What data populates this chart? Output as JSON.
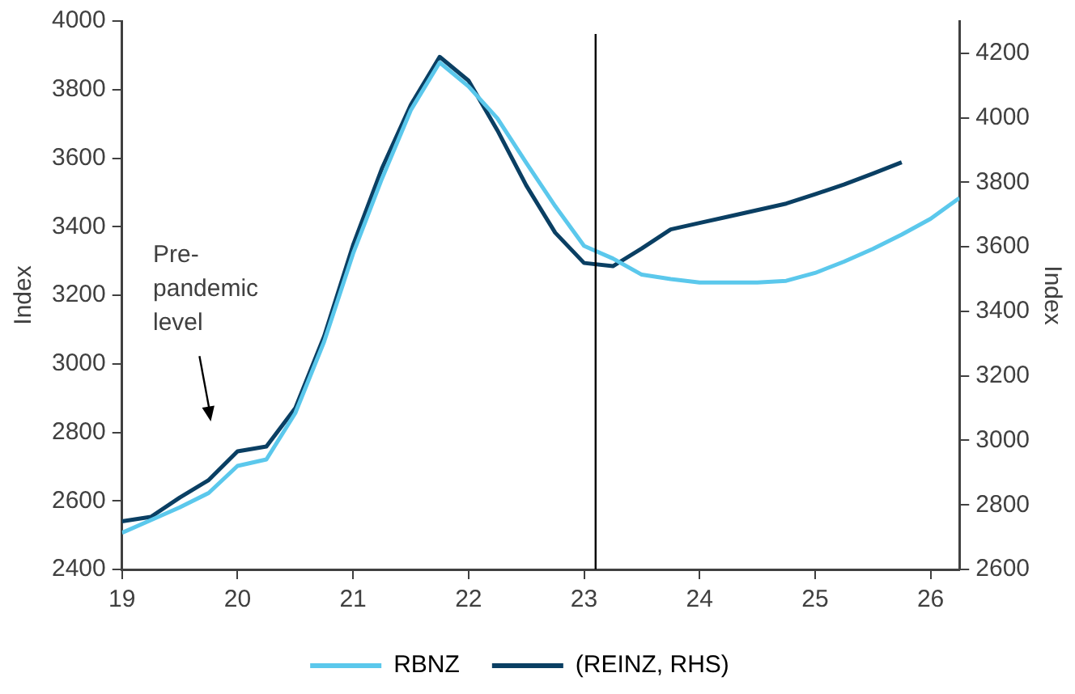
{
  "chart_data": {
    "type": "line",
    "ylabel": "Index",
    "y2label": "Index",
    "xlim": [
      19,
      26.25
    ],
    "xticks": [
      19,
      20,
      21,
      22,
      23,
      24,
      25,
      26
    ],
    "ylim": [
      2400,
      4000
    ],
    "yticks": [
      2400,
      2600,
      2800,
      3000,
      3200,
      3400,
      3600,
      3800,
      4000
    ],
    "y2lim": [
      2600,
      4300
    ],
    "y2ticks": [
      2600,
      2800,
      3000,
      3200,
      3400,
      3600,
      3800,
      4000,
      4200
    ],
    "grid": false,
    "legend": "bottom",
    "marker": "none",
    "line_style": "solid",
    "series": [
      {
        "name": "RBNZ",
        "color": "#5bc8ec",
        "x": [
          19,
          19.25,
          19.5,
          19.75,
          20,
          20.25,
          20.5,
          20.75,
          21,
          21.25,
          21.5,
          21.75,
          22,
          22.25,
          22.5,
          22.75,
          23,
          23.25,
          23.5,
          23.75,
          24,
          24.25,
          24.5,
          24.75,
          25,
          25.25,
          25.5,
          25.75,
          26,
          26.25
        ],
        "values": [
          2507,
          2544,
          2581,
          2623,
          2702,
          2721,
          2856,
          3065,
          3321,
          3540,
          3740,
          3879,
          3809,
          3716,
          3586,
          3460,
          3344,
          3307,
          3260,
          3247,
          3237,
          3237,
          3237,
          3242,
          3265,
          3298,
          3335,
          3377,
          3423,
          3484
        ]
      },
      {
        "name": "(REINZ, RHS)",
        "color": "#0a3f63",
        "axis": "y2",
        "x": [
          19,
          19.25,
          19.5,
          19.75,
          20,
          20.25,
          20.5,
          20.75,
          21,
          21.25,
          21.5,
          21.75,
          22,
          22.25,
          22.5,
          22.75,
          23,
          23.25,
          23.5,
          23.75,
          24,
          24.25,
          24.5,
          24.75,
          25,
          25.25,
          25.5,
          25.75
        ],
        "values": [
          2749,
          2763,
          2823,
          2877,
          2966,
          2981,
          3100,
          3323,
          3605,
          3843,
          4040,
          4189,
          4115,
          3961,
          3790,
          3644,
          3550,
          3540,
          3595,
          3654,
          3674,
          3694,
          3714,
          3734,
          3763,
          3793,
          3827,
          3862
        ]
      }
    ],
    "ref_lines": [
      {
        "axis": "x",
        "value": 23.1,
        "color": "#000000"
      }
    ],
    "annotations": [
      "Pre-pandemic level"
    ]
  }
}
